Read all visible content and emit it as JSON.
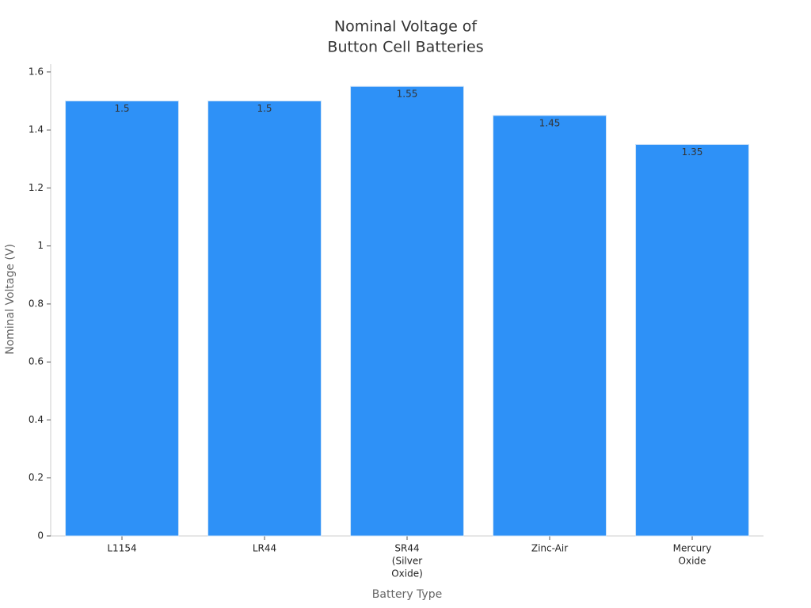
{
  "chart_data": {
    "type": "bar",
    "title": [
      "Nominal Voltage of",
      "Button Cell Batteries"
    ],
    "x_label": "Battery Type",
    "y_label": "Nominal Voltage (V)",
    "categories": [
      [
        "L1154"
      ],
      [
        "LR44"
      ],
      [
        "SR44",
        "(Silver",
        "Oxide)"
      ],
      [
        "Zinc-Air"
      ],
      [
        "Mercury",
        "Oxide"
      ]
    ],
    "values": [
      1.5,
      1.5,
      1.55,
      1.45,
      1.35
    ],
    "color": "#2e91f7",
    "ylim": [
      0,
      1.627
    ],
    "yticks": [
      0,
      0.2,
      0.4,
      0.6,
      0.8,
      1,
      1.2,
      1.4,
      1.6
    ],
    "grid": false
  }
}
